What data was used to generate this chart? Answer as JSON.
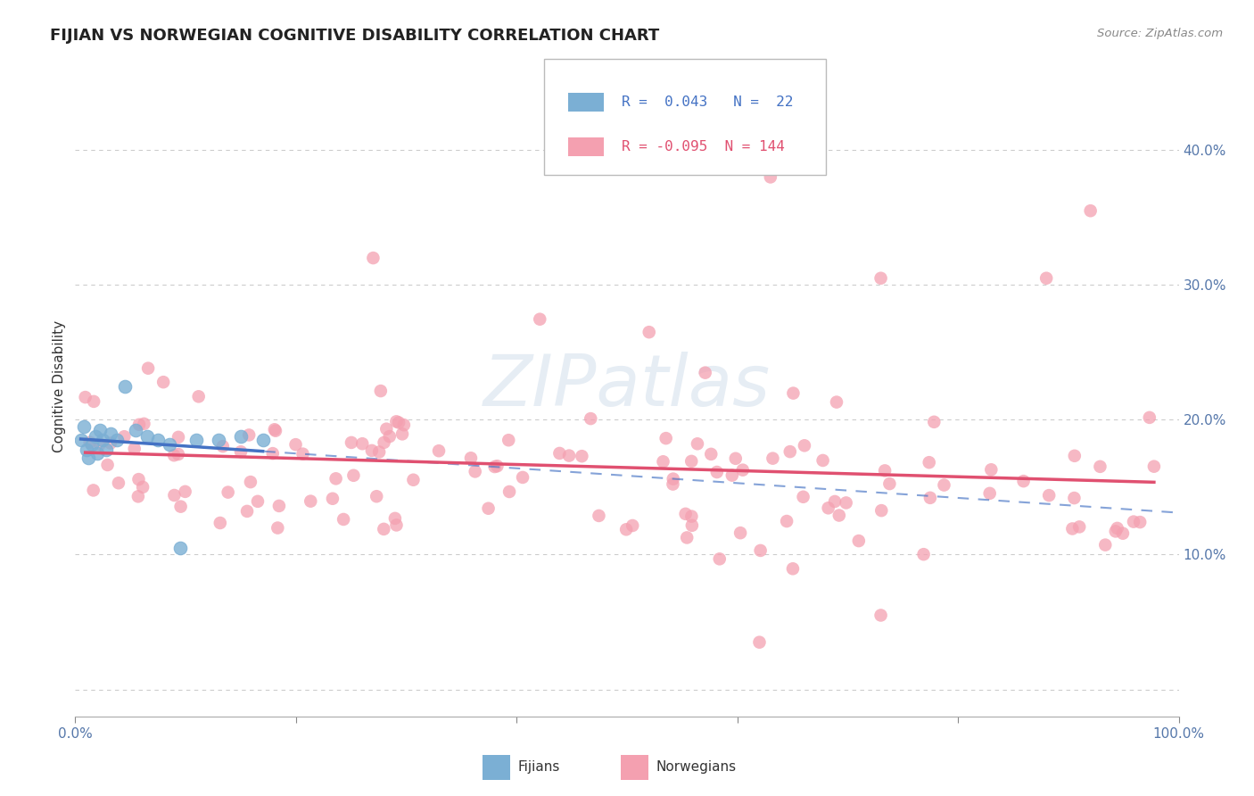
{
  "title": "FIJIAN VS NORWEGIAN COGNITIVE DISABILITY CORRELATION CHART",
  "source": "Source: ZipAtlas.com",
  "ylabel": "Cognitive Disability",
  "watermark": "ZIPatlas",
  "xlim": [
    0.0,
    1.0
  ],
  "ylim": [
    -0.02,
    0.47
  ],
  "yticks": [
    0.0,
    0.1,
    0.2,
    0.3,
    0.4
  ],
  "xticks": [
    0.0,
    0.2,
    0.4,
    0.6,
    0.8,
    1.0
  ],
  "fijian_R": 0.043,
  "fijian_N": 22,
  "norwegian_R": -0.095,
  "norwegian_N": 144,
  "fijian_color": "#7BAFD4",
  "norwegian_color": "#F4A0B0",
  "fijian_line_color": "#4472C4",
  "norwegian_line_color": "#E05070",
  "background_color": "#ffffff",
  "grid_color": "#cccccc",
  "title_color": "#222222",
  "axis_color": "#5577AA",
  "axis_tick_color": "#888888"
}
